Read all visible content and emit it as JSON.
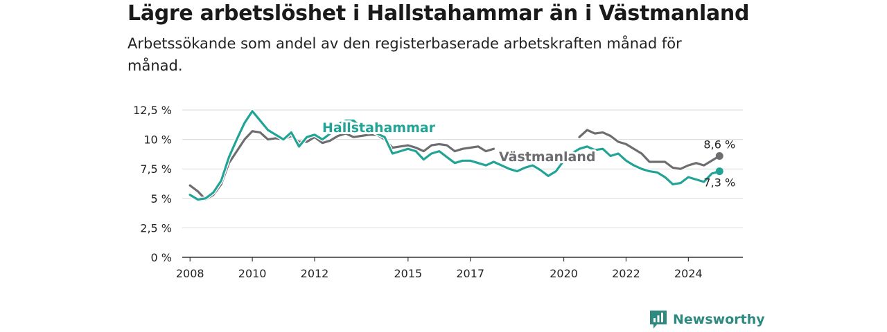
{
  "title": "Lägre arbetslöshet i Hallstahammar än i Västmanland",
  "subtitle": "Arbetssökande som andel av den registerbaserade arbetskraften månad för månad.",
  "brand": {
    "name": "Newsworthy",
    "color": "#2e8a80"
  },
  "chart_data": {
    "type": "line",
    "title": "Lägre arbetslöshet i Hallstahammar än i Västmanland",
    "xlabel": "",
    "ylabel": "",
    "x_ticks": [
      "2008",
      "2010",
      "2012",
      "2015",
      "2017",
      "2020",
      "2022",
      "2024"
    ],
    "y_ticks": [
      "0 %",
      "2,5 %",
      "5 %",
      "7,5 %",
      "10 %",
      "12,5 %"
    ],
    "ylim": [
      0,
      12.5
    ],
    "xlim": [
      "2007-10",
      "2025-10"
    ],
    "grid": true,
    "series": [
      {
        "name": "Hallstahammar",
        "color": "#21a395",
        "end_label": "7,3 %",
        "points": [
          [
            "2008-01",
            5.3
          ],
          [
            "2008-04",
            4.9
          ],
          [
            "2008-07",
            5.0
          ],
          [
            "2008-10",
            5.5
          ],
          [
            "2009-01",
            6.5
          ],
          [
            "2009-04",
            8.5
          ],
          [
            "2009-07",
            10.0
          ],
          [
            "2009-10",
            11.4
          ],
          [
            "2010-01",
            12.4
          ],
          [
            "2010-04",
            11.6
          ],
          [
            "2010-07",
            10.8
          ],
          [
            "2010-10",
            10.4
          ],
          [
            "2011-01",
            10.0
          ],
          [
            "2011-04",
            10.6
          ],
          [
            "2011-07",
            9.4
          ],
          [
            "2011-10",
            10.2
          ],
          [
            "2012-01",
            10.4
          ],
          [
            "2012-04",
            10.0
          ],
          [
            "2012-07",
            10.5
          ],
          [
            "2012-10",
            11.3
          ],
          [
            "2013-01",
            11.6
          ],
          [
            "2013-04",
            11.6
          ],
          [
            "2013-07",
            11.0
          ],
          [
            "2013-10",
            10.8
          ],
          [
            "2014-01",
            10.5
          ],
          [
            "2014-04",
            10.2
          ],
          [
            "2014-07",
            8.8
          ],
          [
            "2014-10",
            9.0
          ],
          [
            "2015-01",
            9.2
          ],
          [
            "2015-04",
            9.0
          ],
          [
            "2015-07",
            8.3
          ],
          [
            "2015-10",
            8.8
          ],
          [
            "2016-01",
            9.0
          ],
          [
            "2016-04",
            8.5
          ],
          [
            "2016-07",
            8.0
          ],
          [
            "2016-10",
            8.2
          ],
          [
            "2017-01",
            8.2
          ],
          [
            "2017-04",
            8.0
          ],
          [
            "2017-07",
            7.8
          ],
          [
            "2017-10",
            8.1
          ],
          [
            "2018-01",
            7.8
          ],
          [
            "2018-04",
            7.5
          ],
          [
            "2018-07",
            7.3
          ],
          [
            "2018-10",
            7.6
          ],
          [
            "2019-01",
            7.8
          ],
          [
            "2019-04",
            7.4
          ],
          [
            "2019-07",
            6.9
          ],
          [
            "2019-10",
            7.3
          ],
          [
            "2020-01",
            8.2
          ],
          [
            "2020-04",
            8.8
          ],
          [
            "2020-07",
            9.2
          ],
          [
            "2020-10",
            9.4
          ],
          [
            "2021-01",
            9.1
          ],
          [
            "2021-04",
            9.2
          ],
          [
            "2021-07",
            8.6
          ],
          [
            "2021-10",
            8.8
          ],
          [
            "2022-01",
            8.2
          ],
          [
            "2022-04",
            7.8
          ],
          [
            "2022-07",
            7.5
          ],
          [
            "2022-10",
            7.3
          ],
          [
            "2023-01",
            7.2
          ],
          [
            "2023-04",
            6.8
          ],
          [
            "2023-07",
            6.2
          ],
          [
            "2023-10",
            6.3
          ],
          [
            "2024-01",
            6.8
          ],
          [
            "2024-04",
            6.6
          ],
          [
            "2024-07",
            6.4
          ],
          [
            "2024-10",
            7.1
          ],
          [
            "2025-01",
            7.3
          ]
        ]
      },
      {
        "name": "Västmanland",
        "color": "#6d6d71",
        "end_label": "8,6 %",
        "points": [
          [
            "2008-01",
            6.1
          ],
          [
            "2008-04",
            5.6
          ],
          [
            "2008-07",
            4.9
          ],
          [
            "2008-10",
            5.3
          ],
          [
            "2009-01",
            6.2
          ],
          [
            "2009-04",
            8.0
          ],
          [
            "2009-07",
            9.0
          ],
          [
            "2009-10",
            10.0
          ],
          [
            "2010-01",
            10.7
          ],
          [
            "2010-04",
            10.6
          ],
          [
            "2010-07",
            10.0
          ],
          [
            "2010-10",
            10.1
          ],
          [
            "2011-01",
            10.0
          ],
          [
            "2011-04",
            10.3
          ],
          [
            "2011-07",
            9.8
          ],
          [
            "2011-10",
            9.8
          ],
          [
            "2012-01",
            10.2
          ],
          [
            "2012-04",
            9.7
          ],
          [
            "2012-07",
            9.9
          ],
          [
            "2012-10",
            10.3
          ],
          [
            "2013-01",
            10.5
          ],
          [
            "2013-04",
            10.2
          ],
          [
            "2013-07",
            10.3
          ],
          [
            "2013-10",
            10.4
          ],
          [
            "2014-01",
            10.4
          ],
          [
            "2014-04",
            10.0
          ],
          [
            "2014-07",
            9.3
          ],
          [
            "2014-10",
            9.4
          ],
          [
            "2015-01",
            9.5
          ],
          [
            "2015-04",
            9.3
          ],
          [
            "2015-07",
            9.0
          ],
          [
            "2015-10",
            9.5
          ],
          [
            "2016-01",
            9.6
          ],
          [
            "2016-04",
            9.5
          ],
          [
            "2016-07",
            9.0
          ],
          [
            "2016-10",
            9.2
          ],
          [
            "2017-01",
            9.3
          ],
          [
            "2017-04",
            9.4
          ],
          [
            "2017-07",
            9.0
          ],
          [
            "2017-10",
            9.2
          ]
        ],
        "points_tail": [
          [
            "2020-07",
            10.2
          ],
          [
            "2020-10",
            10.8
          ],
          [
            "2021-01",
            10.5
          ],
          [
            "2021-04",
            10.6
          ],
          [
            "2021-07",
            10.3
          ],
          [
            "2021-10",
            9.8
          ],
          [
            "2022-01",
            9.6
          ],
          [
            "2022-04",
            9.2
          ],
          [
            "2022-07",
            8.8
          ],
          [
            "2022-10",
            8.1
          ],
          [
            "2023-01",
            8.1
          ],
          [
            "2023-04",
            8.1
          ],
          [
            "2023-07",
            7.6
          ],
          [
            "2023-10",
            7.5
          ],
          [
            "2024-01",
            7.8
          ],
          [
            "2024-04",
            8.0
          ],
          [
            "2024-07",
            7.8
          ],
          [
            "2024-10",
            8.2
          ],
          [
            "2025-01",
            8.6
          ]
        ]
      }
    ]
  }
}
